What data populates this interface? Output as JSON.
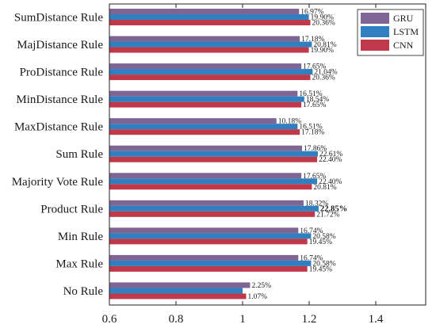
{
  "chart_data": {
    "type": "bar",
    "orientation": "horizontal",
    "categories": [
      "SumDistance Rule",
      "MajDistance Rule",
      "ProDistance Rule",
      "MinDistance Rule",
      "MaxDistance Rule",
      "Sum Rule",
      "Majority Vote Rule",
      "Product Rule",
      "Min Rule",
      "Max Rule",
      "No Rule"
    ],
    "series": [
      {
        "name": "GRU",
        "color": "#7e6594",
        "values": [
          1.1697,
          1.1718,
          1.1765,
          1.1651,
          1.1018,
          1.1786,
          1.1765,
          1.1832,
          1.1674,
          1.1674,
          1.0225
        ],
        "labels": [
          "16.97%",
          "17.18%",
          "17.65%",
          "16.51%",
          "10.18%",
          "17.86%",
          "17.65%",
          "18.32%",
          "16.74%",
          "16.74%",
          "2.25%"
        ]
      },
      {
        "name": "LSTM",
        "color": "#2f7fc1",
        "values": [
          1.199,
          1.2081,
          1.2104,
          1.1854,
          1.1651,
          1.2261,
          1.224,
          1.2285,
          1.2058,
          1.2058,
          1.0
        ],
        "labels": [
          "19.90%",
          "20.81%",
          "21.04%",
          "18.54%",
          "16.51%",
          "22.61%",
          "22.40%",
          "22.85%",
          "20.58%",
          "20.58%",
          ""
        ]
      },
      {
        "name": "CNN",
        "color": "#c0394a",
        "values": [
          1.2036,
          1.199,
          1.2036,
          1.1765,
          1.1718,
          1.224,
          1.2081,
          1.2172,
          1.1945,
          1.1945,
          1.0107
        ],
        "labels": [
          "20.36%",
          "19.90%",
          "20.36%",
          "17.65%",
          "17.18%",
          "22.40%",
          "20.81%",
          "21.72%",
          "19.45%",
          "19.45%",
          "1.07%"
        ]
      }
    ],
    "bold_labels": [
      {
        "category_index": 7,
        "series_index": 1
      }
    ],
    "xlim": [
      0.6,
      1.55
    ],
    "xticks": [
      0.6,
      0.8,
      1.0,
      1.2,
      1.4
    ],
    "xtick_labels": [
      "0.6",
      "0.8",
      "1",
      "1.2",
      "1.4"
    ],
    "title": "",
    "xlabel": "",
    "ylabel": "",
    "grid": false,
    "legend_position": "top-right"
  }
}
